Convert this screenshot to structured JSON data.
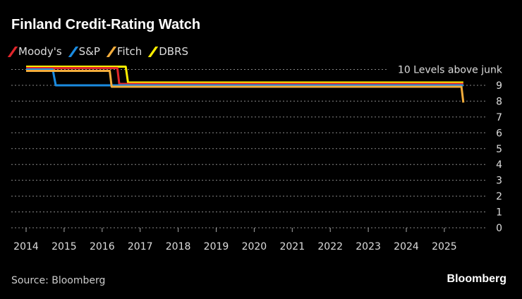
{
  "title": "Finland Credit-Rating Watch",
  "source": "Source: Bloomberg",
  "brand": "Bloomberg",
  "chart_data": {
    "type": "line",
    "title": "Finland Credit-Rating Watch",
    "annotation": "10 Levels above junk",
    "xlim": [
      2014,
      2025.6
    ],
    "ylim": [
      0,
      10
    ],
    "x_ticks": [
      "2014",
      "2015",
      "2016",
      "2017",
      "2018",
      "2019",
      "2020",
      "2021",
      "2022",
      "2023",
      "2024",
      "2025"
    ],
    "y_ticks": [
      "0",
      "1",
      "2",
      "3",
      "4",
      "5",
      "6",
      "7",
      "8",
      "9"
    ],
    "grid": true,
    "legend": "top-left",
    "series": [
      {
        "name": "Moody's",
        "color": "#e0262b",
        "points": [
          [
            2014.0,
            10
          ],
          [
            2016.4,
            10
          ],
          [
            2016.45,
            9
          ],
          [
            2025.5,
            9
          ]
        ]
      },
      {
        "name": "S&P",
        "color": "#1a8be0",
        "points": [
          [
            2014.0,
            10
          ],
          [
            2014.7,
            10
          ],
          [
            2014.78,
            9
          ],
          [
            2025.5,
            9
          ]
        ]
      },
      {
        "name": "Fitch",
        "color": "#f3ad3c",
        "points": [
          [
            2014.0,
            10
          ],
          [
            2016.2,
            10
          ],
          [
            2016.25,
            9
          ],
          [
            2025.45,
            9
          ],
          [
            2025.5,
            8
          ]
        ]
      },
      {
        "name": "DBRS",
        "color": "#ffef00",
        "points": [
          [
            2014.0,
            10
          ],
          [
            2016.62,
            10
          ],
          [
            2016.68,
            9
          ],
          [
            2025.5,
            9
          ]
        ]
      }
    ]
  }
}
